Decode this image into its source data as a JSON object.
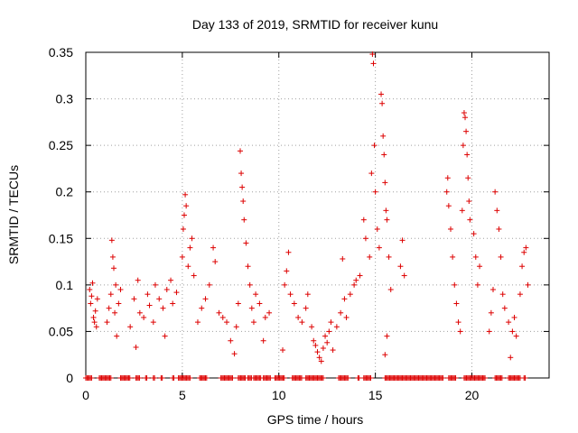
{
  "chart_data": {
    "type": "scatter",
    "title": "Day 133 of 2019, SRMTID for receiver kunu",
    "xlabel": "GPS time / hours",
    "ylabel": "SRMTID / TECUs",
    "xlim": [
      0,
      24
    ],
    "ylim": [
      0,
      0.35
    ],
    "xticks": [
      0,
      5,
      10,
      15,
      20
    ],
    "yticks": [
      0,
      0.05,
      0.1,
      0.15,
      0.2,
      0.25,
      0.3,
      0.35
    ],
    "xtick_labels": [
      "0",
      "5",
      "10",
      "15",
      "20"
    ],
    "ytick_labels": [
      "0",
      "0.05",
      "0.1",
      "0.15",
      "0.2",
      "0.25",
      "0.3",
      "0.35"
    ],
    "grid": true,
    "marker": "+",
    "color": "#dd0000",
    "series": [
      {
        "name": "SRMTID",
        "points": [
          [
            0.2,
            0.095
          ],
          [
            0.25,
            0.08
          ],
          [
            0.3,
            0.088
          ],
          [
            0.35,
            0.102
          ],
          [
            0.4,
            0.065
          ],
          [
            0.45,
            0.06
          ],
          [
            0.5,
            0.072
          ],
          [
            0.55,
            0.055
          ],
          [
            0.6,
            0.085
          ],
          [
            1.1,
            0.06
          ],
          [
            1.2,
            0.075
          ],
          [
            1.3,
            0.09
          ],
          [
            1.35,
            0.148
          ],
          [
            1.4,
            0.13
          ],
          [
            1.45,
            0.118
          ],
          [
            1.5,
            0.07
          ],
          [
            1.55,
            0.1
          ],
          [
            1.6,
            0.045
          ],
          [
            1.7,
            0.08
          ],
          [
            1.8,
            0.095
          ],
          [
            2.3,
            0.055
          ],
          [
            2.5,
            0.085
          ],
          [
            2.6,
            0.033
          ],
          [
            2.7,
            0.105
          ],
          [
            2.8,
            0.07
          ],
          [
            3.0,
            0.065
          ],
          [
            3.2,
            0.09
          ],
          [
            3.3,
            0.078
          ],
          [
            3.5,
            0.06
          ],
          [
            3.6,
            0.1
          ],
          [
            3.8,
            0.085
          ],
          [
            4.0,
            0.075
          ],
          [
            4.1,
            0.045
          ],
          [
            4.2,
            0.095
          ],
          [
            4.4,
            0.105
          ],
          [
            4.5,
            0.08
          ],
          [
            4.7,
            0.092
          ],
          [
            5.0,
            0.13
          ],
          [
            5.05,
            0.16
          ],
          [
            5.1,
            0.175
          ],
          [
            5.15,
            0.197
          ],
          [
            5.2,
            0.185
          ],
          [
            5.3,
            0.12
          ],
          [
            5.4,
            0.14
          ],
          [
            5.5,
            0.15
          ],
          [
            5.6,
            0.11
          ],
          [
            5.8,
            0.06
          ],
          [
            6.0,
            0.075
          ],
          [
            6.2,
            0.085
          ],
          [
            6.4,
            0.1
          ],
          [
            6.6,
            0.14
          ],
          [
            6.7,
            0.125
          ],
          [
            6.9,
            0.07
          ],
          [
            7.1,
            0.065
          ],
          [
            7.3,
            0.06
          ],
          [
            7.5,
            0.04
          ],
          [
            7.7,
            0.026
          ],
          [
            7.8,
            0.055
          ],
          [
            7.9,
            0.08
          ],
          [
            8.0,
            0.244
          ],
          [
            8.05,
            0.22
          ],
          [
            8.1,
            0.205
          ],
          [
            8.15,
            0.19
          ],
          [
            8.2,
            0.17
          ],
          [
            8.3,
            0.145
          ],
          [
            8.4,
            0.12
          ],
          [
            8.5,
            0.1
          ],
          [
            8.6,
            0.075
          ],
          [
            8.7,
            0.06
          ],
          [
            8.8,
            0.09
          ],
          [
            9.0,
            0.08
          ],
          [
            9.2,
            0.04
          ],
          [
            9.3,
            0.065
          ],
          [
            9.5,
            0.07
          ],
          [
            10.2,
            0.03
          ],
          [
            10.3,
            0.1
          ],
          [
            10.4,
            0.115
          ],
          [
            10.5,
            0.135
          ],
          [
            10.6,
            0.09
          ],
          [
            10.8,
            0.08
          ],
          [
            11.0,
            0.065
          ],
          [
            11.2,
            0.06
          ],
          [
            11.4,
            0.075
          ],
          [
            11.5,
            0.09
          ],
          [
            11.7,
            0.055
          ],
          [
            11.8,
            0.04
          ],
          [
            11.9,
            0.035
          ],
          [
            12.0,
            0.028
          ],
          [
            12.1,
            0.022
          ],
          [
            12.2,
            0.018
          ],
          [
            12.3,
            0.032
          ],
          [
            12.4,
            0.045
          ],
          [
            12.5,
            0.038
          ],
          [
            12.6,
            0.05
          ],
          [
            12.7,
            0.06
          ],
          [
            12.8,
            0.03
          ],
          [
            13.0,
            0.055
          ],
          [
            13.2,
            0.07
          ],
          [
            13.3,
            0.128
          ],
          [
            13.4,
            0.085
          ],
          [
            13.5,
            0.065
          ],
          [
            13.7,
            0.09
          ],
          [
            13.9,
            0.1
          ],
          [
            14.0,
            0.105
          ],
          [
            14.2,
            0.11
          ],
          [
            14.4,
            0.17
          ],
          [
            14.5,
            0.15
          ],
          [
            14.7,
            0.13
          ],
          [
            14.8,
            0.22
          ],
          [
            14.85,
            0.348
          ],
          [
            14.9,
            0.338
          ],
          [
            14.95,
            0.25
          ],
          [
            15.0,
            0.2
          ],
          [
            15.1,
            0.16
          ],
          [
            15.2,
            0.14
          ],
          [
            15.3,
            0.305
          ],
          [
            15.35,
            0.295
          ],
          [
            15.4,
            0.26
          ],
          [
            15.45,
            0.24
          ],
          [
            15.5,
            0.21
          ],
          [
            15.55,
            0.18
          ],
          [
            15.6,
            0.17
          ],
          [
            15.7,
            0.13
          ],
          [
            15.5,
            0.025
          ],
          [
            15.6,
            0.045
          ],
          [
            15.8,
            0.095
          ],
          [
            16.3,
            0.12
          ],
          [
            16.4,
            0.148
          ],
          [
            16.5,
            0.11
          ],
          [
            18.7,
            0.2
          ],
          [
            18.75,
            0.215
          ],
          [
            18.8,
            0.185
          ],
          [
            18.9,
            0.16
          ],
          [
            19.0,
            0.13
          ],
          [
            19.1,
            0.1
          ],
          [
            19.2,
            0.08
          ],
          [
            19.3,
            0.06
          ],
          [
            19.4,
            0.05
          ],
          [
            19.5,
            0.18
          ],
          [
            19.55,
            0.25
          ],
          [
            19.6,
            0.285
          ],
          [
            19.65,
            0.28
          ],
          [
            19.7,
            0.265
          ],
          [
            19.75,
            0.24
          ],
          [
            19.8,
            0.215
          ],
          [
            19.85,
            0.19
          ],
          [
            19.9,
            0.17
          ],
          [
            20.1,
            0.155
          ],
          [
            20.2,
            0.13
          ],
          [
            20.3,
            0.1
          ],
          [
            20.4,
            0.12
          ],
          [
            20.9,
            0.05
          ],
          [
            21.0,
            0.07
          ],
          [
            21.1,
            0.095
          ],
          [
            21.2,
            0.2
          ],
          [
            21.3,
            0.18
          ],
          [
            21.4,
            0.16
          ],
          [
            21.5,
            0.13
          ],
          [
            21.6,
            0.09
          ],
          [
            21.7,
            0.075
          ],
          [
            21.9,
            0.06
          ],
          [
            22.0,
            0.022
          ],
          [
            22.1,
            0.05
          ],
          [
            22.2,
            0.065
          ],
          [
            22.3,
            0.045
          ],
          [
            22.5,
            0.09
          ],
          [
            22.6,
            0.12
          ],
          [
            22.7,
            0.135
          ],
          [
            22.8,
            0.14
          ],
          [
            22.9,
            0.1
          ]
        ],
        "zero_segments": [
          [
            0.0,
            0.3
          ],
          [
            0.7,
            1.3
          ],
          [
            1.8,
            2.3
          ],
          [
            2.6,
            2.8
          ],
          [
            3.1,
            3.2
          ],
          [
            3.5,
            3.6
          ],
          [
            3.9,
            4.0
          ],
          [
            4.5,
            4.6
          ],
          [
            4.8,
            5.4
          ],
          [
            5.9,
            6.3
          ],
          [
            7.0,
            7.6
          ],
          [
            7.9,
            8.3
          ],
          [
            8.4,
            8.6
          ],
          [
            8.7,
            9.1
          ],
          [
            9.2,
            9.6
          ],
          [
            9.8,
            10.3
          ],
          [
            10.7,
            11.2
          ],
          [
            11.4,
            12.3
          ],
          [
            13.1,
            13.6
          ],
          [
            14.1,
            14.2
          ],
          [
            14.4,
            14.8
          ],
          [
            15.5,
            18.5
          ],
          [
            18.8,
            19.2
          ],
          [
            19.6,
            20.7
          ],
          [
            21.2,
            21.6
          ],
          [
            21.9,
            22.5
          ],
          [
            22.7,
            22.8
          ]
        ]
      }
    ]
  }
}
